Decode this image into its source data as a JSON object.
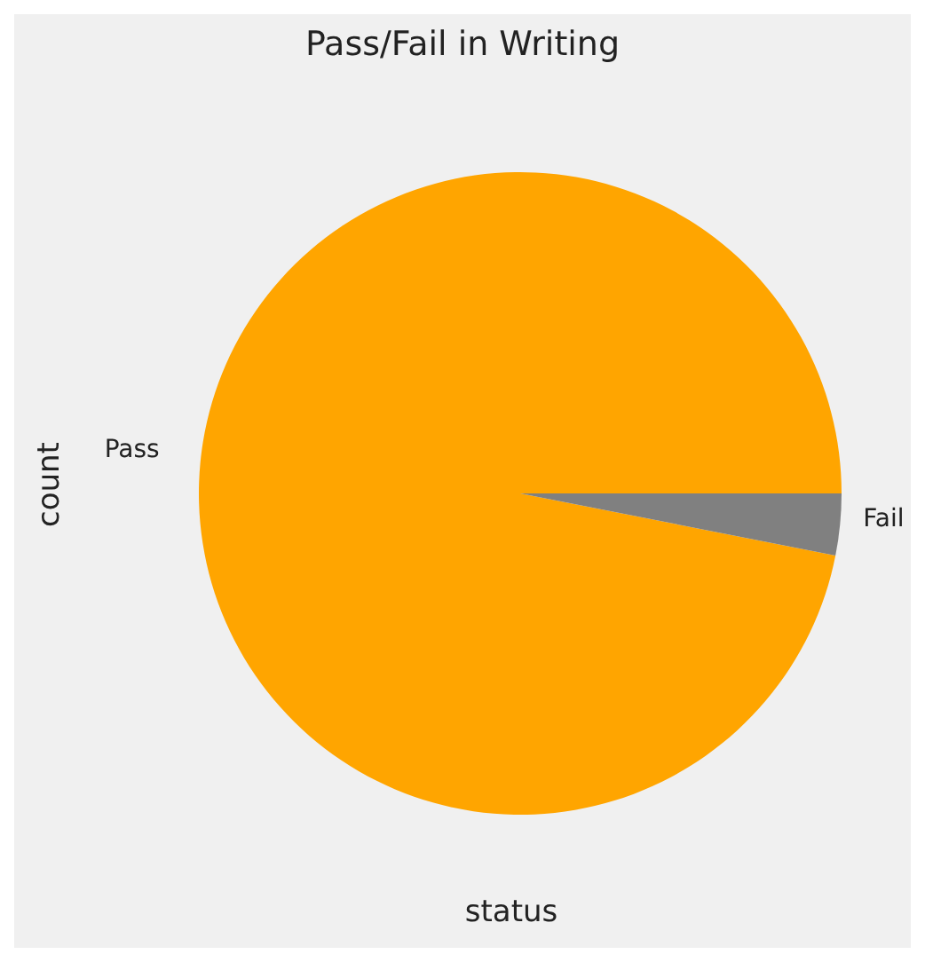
{
  "chart_data": {
    "type": "pie",
    "title": "Pass/Fail in Writing",
    "xlabel": "status",
    "ylabel": "count",
    "categories": [
      "Pass",
      "Fail"
    ],
    "values": [
      96.9,
      3.1
    ],
    "colors": [
      "#ffa500",
      "#808080"
    ]
  }
}
